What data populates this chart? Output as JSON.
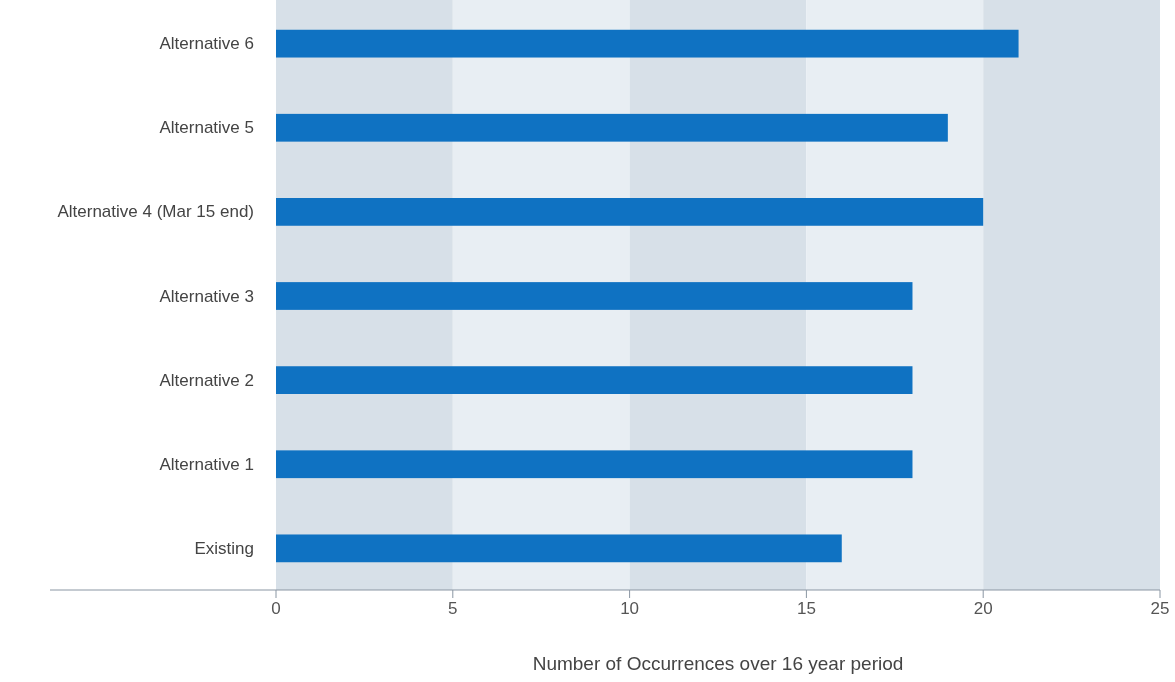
{
  "chart_data": {
    "type": "bar",
    "orientation": "horizontal",
    "xlabel": "Number of Occurrences over 16 year period",
    "categories": [
      "Alternative 6",
      "Alternative 5",
      "Alternative 4 (Mar 15 end)",
      "Alternative 3",
      "Alternative 2",
      "Alternative 1",
      "Existing"
    ],
    "values": [
      21,
      19,
      20,
      18,
      18,
      18,
      16
    ],
    "color": "#0f72c2",
    "xlim": [
      0,
      25
    ],
    "xticks": [
      0,
      5,
      10,
      15,
      20,
      25
    ],
    "bands": [
      {
        "axis": "x",
        "from": 0,
        "to": 5,
        "color": "#d7e0e8"
      },
      {
        "axis": "x",
        "from": 5,
        "to": 10,
        "color": "#e8eef3"
      },
      {
        "axis": "x",
        "from": 10,
        "to": 15,
        "color": "#d7e0e8"
      },
      {
        "axis": "x",
        "from": 15,
        "to": 20,
        "color": "#e8eef3"
      },
      {
        "axis": "x",
        "from": 20,
        "to": 25,
        "color": "#d7e0e8"
      }
    ]
  }
}
